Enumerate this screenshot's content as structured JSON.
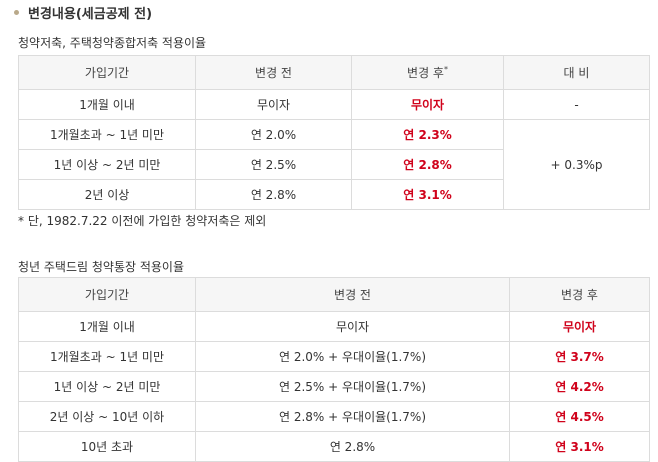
{
  "heading": "변경내용(세금공제 전)",
  "table1": {
    "caption": "청약저축, 주택청약종합저축 적용이율",
    "headers": [
      "가입기간",
      "변경 전",
      "변경 후",
      "대 비"
    ],
    "header_mark": "*",
    "rows": [
      {
        "period": "1개월 이내",
        "before": "무이자",
        "after": "무이자",
        "compare": "-"
      },
      {
        "period": "1개월초과 ~ 1년 미만",
        "before": "연 2.0%",
        "after": "연 2.3%"
      },
      {
        "period": "1년 이상 ~ 2년 미만",
        "before": "연 2.5%",
        "after": "연 2.8%",
        "compare": "+ 0.3%p"
      },
      {
        "period": "2년 이상",
        "before": "연 2.8%",
        "after": "연 3.1%"
      }
    ],
    "note": "* 단, 1982.7.22 이전에 가입한 청약저축은 제외"
  },
  "table2": {
    "caption": "청년 주택드림 청약통장 적용이율",
    "headers": [
      "가입기간",
      "변경 전",
      "변경 후"
    ],
    "rows": [
      {
        "period": "1개월 이내",
        "before": "무이자",
        "after": "무이자"
      },
      {
        "period": "1개월초과 ~ 1년 미만",
        "before": "연 2.0% + 우대이율(1.7%)",
        "after": "연 3.7%"
      },
      {
        "period": "1년 이상 ~ 2년 미만",
        "before": "연 2.5% + 우대이율(1.7%)",
        "after": "연 4.2%"
      },
      {
        "period": "2년 이상 ~ 10년 이하",
        "before": "연 2.8% + 우대이율(1.7%)",
        "after": "연 4.5%"
      },
      {
        "period": "10년 초과",
        "before": "연 2.8%",
        "after": "연 3.1%"
      }
    ]
  },
  "colors": {
    "highlight": "#d0021b",
    "header_bg": "#f6f6f6",
    "border": "#dcdcdc",
    "bullet": "#b9a98a"
  }
}
